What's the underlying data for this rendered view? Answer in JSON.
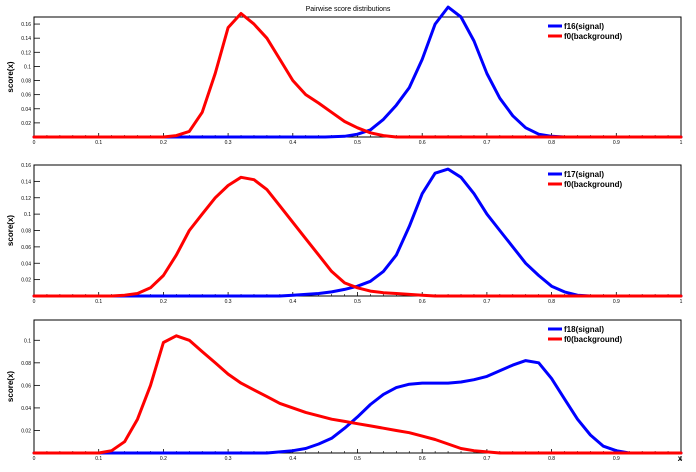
{
  "title": "Pairwise score distributions",
  "x_axis_label": "x",
  "colors": {
    "signal": "#0000ff",
    "background": "#ff0000",
    "frame": "#000000"
  },
  "chart_data": [
    {
      "type": "line",
      "ylabel": "score(x)",
      "xlim": [
        0,
        1
      ],
      "ylim": [
        0,
        0.17
      ],
      "x_ticks": [
        "0",
        "0.1",
        "0.2",
        "0.3",
        "0.4",
        "0.5",
        "0.6",
        "0.7",
        "0.8",
        "0.9",
        "1"
      ],
      "y_ticks": [
        "0.02",
        "0.04",
        "0.06",
        "0.08",
        "0.1",
        "0.12",
        "0.14",
        "0.16"
      ],
      "y_tick_values": [
        0.02,
        0.04,
        0.06,
        0.08,
        0.1,
        0.12,
        0.14,
        0.16
      ],
      "legend_position": "top-right",
      "series": [
        {
          "name": "f16(signal)",
          "role": "signal",
          "x": [
            0.0,
            0.45,
            0.48,
            0.5,
            0.52,
            0.54,
            0.56,
            0.58,
            0.6,
            0.62,
            0.64,
            0.66,
            0.68,
            0.7,
            0.72,
            0.74,
            0.76,
            0.78,
            0.8,
            0.82,
            1.0
          ],
          "y": [
            0.0,
            0.0,
            0.001,
            0.004,
            0.01,
            0.025,
            0.045,
            0.07,
            0.11,
            0.16,
            0.184,
            0.17,
            0.136,
            0.09,
            0.055,
            0.03,
            0.013,
            0.004,
            0.001,
            0.0,
            0.0
          ]
        },
        {
          "name": "f0(background)",
          "role": "background",
          "x": [
            0.0,
            0.2,
            0.22,
            0.24,
            0.26,
            0.28,
            0.3,
            0.32,
            0.34,
            0.36,
            0.38,
            0.4,
            0.42,
            0.44,
            0.46,
            0.48,
            0.5,
            0.52,
            0.54,
            0.56,
            0.58,
            0.6,
            1.0
          ],
          "y": [
            0.0,
            0.0,
            0.002,
            0.008,
            0.035,
            0.09,
            0.155,
            0.175,
            0.16,
            0.14,
            0.11,
            0.08,
            0.06,
            0.048,
            0.035,
            0.022,
            0.013,
            0.006,
            0.002,
            0.0,
            0.0,
            0.0,
            0.0
          ]
        }
      ]
    },
    {
      "type": "line",
      "ylabel": "score(x)",
      "xlim": [
        0,
        1
      ],
      "ylim": [
        0,
        0.16
      ],
      "x_ticks": [
        "0",
        "0.1",
        "0.2",
        "0.3",
        "0.4",
        "0.5",
        "0.6",
        "0.7",
        "0.8",
        "0.9",
        "1"
      ],
      "y_ticks": [
        "0.02",
        "0.04",
        "0.06",
        "0.08",
        "0.1",
        "0.12",
        "0.14",
        "0.16"
      ],
      "y_tick_values": [
        0.02,
        0.04,
        0.06,
        0.08,
        0.1,
        0.12,
        0.14,
        0.16
      ],
      "legend_position": "top-right",
      "series": [
        {
          "name": "f17(signal)",
          "role": "signal",
          "x": [
            0.0,
            0.38,
            0.4,
            0.42,
            0.44,
            0.46,
            0.48,
            0.5,
            0.52,
            0.54,
            0.56,
            0.58,
            0.6,
            0.62,
            0.64,
            0.66,
            0.68,
            0.7,
            0.72,
            0.74,
            0.76,
            0.78,
            0.8,
            0.82,
            0.84,
            0.86,
            1.0
          ],
          "y": [
            0.0,
            0.0,
            0.001,
            0.002,
            0.003,
            0.005,
            0.008,
            0.012,
            0.018,
            0.03,
            0.05,
            0.085,
            0.125,
            0.15,
            0.155,
            0.145,
            0.125,
            0.1,
            0.08,
            0.06,
            0.04,
            0.025,
            0.012,
            0.005,
            0.001,
            0.0,
            0.0
          ]
        },
        {
          "name": "f0(background)",
          "role": "background",
          "x": [
            0.0,
            0.12,
            0.14,
            0.16,
            0.18,
            0.2,
            0.22,
            0.24,
            0.26,
            0.28,
            0.3,
            0.32,
            0.34,
            0.36,
            0.38,
            0.4,
            0.42,
            0.44,
            0.46,
            0.48,
            0.5,
            0.52,
            0.54,
            0.56,
            0.58,
            0.6,
            0.62,
            1.0
          ],
          "y": [
            0.0,
            0.0,
            0.001,
            0.003,
            0.01,
            0.025,
            0.05,
            0.08,
            0.1,
            0.12,
            0.135,
            0.145,
            0.142,
            0.13,
            0.11,
            0.09,
            0.07,
            0.05,
            0.03,
            0.016,
            0.01,
            0.006,
            0.004,
            0.003,
            0.002,
            0.001,
            0.0,
            0.0
          ]
        }
      ]
    },
    {
      "type": "line",
      "ylabel": "score(x)",
      "xlim": [
        0,
        1
      ],
      "ylim": [
        0,
        0.118
      ],
      "x_ticks": [
        "0",
        "0.1",
        "0.2",
        "0.3",
        "0.4",
        "0.5",
        "0.6",
        "0.7",
        "0.8",
        "0.9",
        "1"
      ],
      "y_ticks": [
        "0.02",
        "0.04",
        "0.06",
        "0.08",
        "0.1"
      ],
      "y_tick_values": [
        0.02,
        0.04,
        0.06,
        0.08,
        0.1
      ],
      "legend_position": "top-right",
      "series": [
        {
          "name": "f18(signal)",
          "role": "signal",
          "x": [
            0.0,
            0.36,
            0.38,
            0.4,
            0.42,
            0.44,
            0.46,
            0.48,
            0.5,
            0.52,
            0.54,
            0.56,
            0.58,
            0.6,
            0.62,
            0.64,
            0.66,
            0.68,
            0.7,
            0.72,
            0.74,
            0.76,
            0.78,
            0.8,
            0.82,
            0.84,
            0.86,
            0.88,
            0.9,
            0.92,
            1.0
          ],
          "y": [
            0.0,
            0.0,
            0.001,
            0.002,
            0.004,
            0.008,
            0.013,
            0.022,
            0.032,
            0.043,
            0.052,
            0.058,
            0.061,
            0.062,
            0.062,
            0.062,
            0.063,
            0.065,
            0.068,
            0.073,
            0.078,
            0.082,
            0.08,
            0.066,
            0.048,
            0.03,
            0.016,
            0.006,
            0.002,
            0.0,
            0.0
          ]
        },
        {
          "name": "f0(background)",
          "role": "background",
          "x": [
            0.0,
            0.1,
            0.12,
            0.14,
            0.16,
            0.18,
            0.2,
            0.22,
            0.24,
            0.26,
            0.28,
            0.3,
            0.32,
            0.34,
            0.36,
            0.38,
            0.4,
            0.42,
            0.44,
            0.46,
            0.48,
            0.5,
            0.52,
            0.54,
            0.56,
            0.58,
            0.6,
            0.62,
            0.64,
            0.66,
            0.68,
            0.7,
            0.72,
            0.74,
            1.0
          ],
          "y": [
            0.0,
            0.0,
            0.002,
            0.01,
            0.03,
            0.06,
            0.098,
            0.104,
            0.1,
            0.09,
            0.08,
            0.07,
            0.062,
            0.056,
            0.05,
            0.044,
            0.04,
            0.036,
            0.033,
            0.03,
            0.028,
            0.026,
            0.024,
            0.022,
            0.02,
            0.018,
            0.015,
            0.012,
            0.008,
            0.004,
            0.002,
            0.001,
            0.0,
            0.0,
            0.0
          ]
        }
      ]
    }
  ]
}
